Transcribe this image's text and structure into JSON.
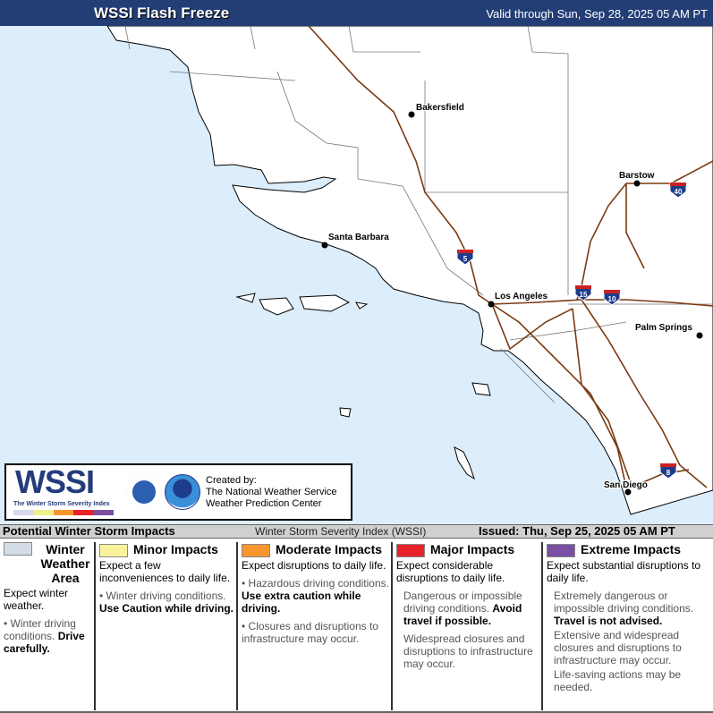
{
  "header": {
    "title": "WSSI Flash Freeze",
    "valid": "Valid through Sun, Sep 28, 2025 05 AM PT"
  },
  "map": {
    "ocean_color": "#dcedfb",
    "land_color": "#ffffff",
    "road_color": "#7a3a12",
    "cities": [
      "Bakersfield",
      "Barstow",
      "Santa Barbara",
      "Los Angeles",
      "Palm Springs",
      "San Diego"
    ],
    "interstates": [
      "40",
      "5",
      "15",
      "10",
      "8"
    ]
  },
  "logo": {
    "wssi": "WSSI",
    "subtitle": "The Winter Storm Severity Index",
    "created": "Created by:",
    "org1": "The National Weather Service",
    "org2": "Weather Prediction Center",
    "nws_seal": "NATIONAL WEATHER SERVICE",
    "noaa": "NOAA"
  },
  "bar": {
    "left": "Potential Winter Storm Impacts",
    "middle": "Winter Storm Severity Index (WSSI)",
    "issued": "Issued: Thu, Sep 25, 2025 05 AM PT"
  },
  "legend": [
    {
      "title": "Winter Weather Area",
      "color": "#d4dde6",
      "desc": "Expect winter weather.",
      "bullets": [
        {
          "text": "Winter driving conditions. ",
          "bold": "Drive carefully."
        }
      ]
    },
    {
      "title": "Minor Impacts",
      "color": "#fbf39c",
      "desc": "Expect a few inconveniences to daily life.",
      "bullets": [
        {
          "text": "Winter driving conditions. ",
          "bold": "Use Caution while driving."
        }
      ]
    },
    {
      "title": "Moderate Impacts",
      "color": "#f7962f",
      "desc": "Expect disruptions to daily life.",
      "bullets": [
        {
          "text": "Hazardous driving conditions. ",
          "bold": "Use extra caution while driving."
        },
        {
          "text": "Closures and disruptions to infrastructure may occur.",
          "bold": ""
        }
      ]
    },
    {
      "title": "Major Impacts",
      "color": "#e8222a",
      "desc": "Expect considerable disruptions to daily life.",
      "bullets": [
        {
          "text": "Dangerous or impossible driving conditions. ",
          "bold": "Avoid travel if possible."
        },
        {
          "text": "Widespread closures and disruptions to infrastructure may occur.",
          "bold": ""
        }
      ]
    },
    {
      "title": "Extreme Impacts",
      "color": "#7b4fa3",
      "desc": "Expect substantial disruptions to daily life.",
      "bullets": [
        {
          "text": "Extremely dangerous or impossible driving conditions. ",
          "bold": "Travel is not advised."
        },
        {
          "text": "Extensive and widespread closures and disruptions to infrastructure may occur.",
          "bold": ""
        },
        {
          "text": "Life-saving actions may be needed.",
          "bold": ""
        }
      ]
    }
  ]
}
